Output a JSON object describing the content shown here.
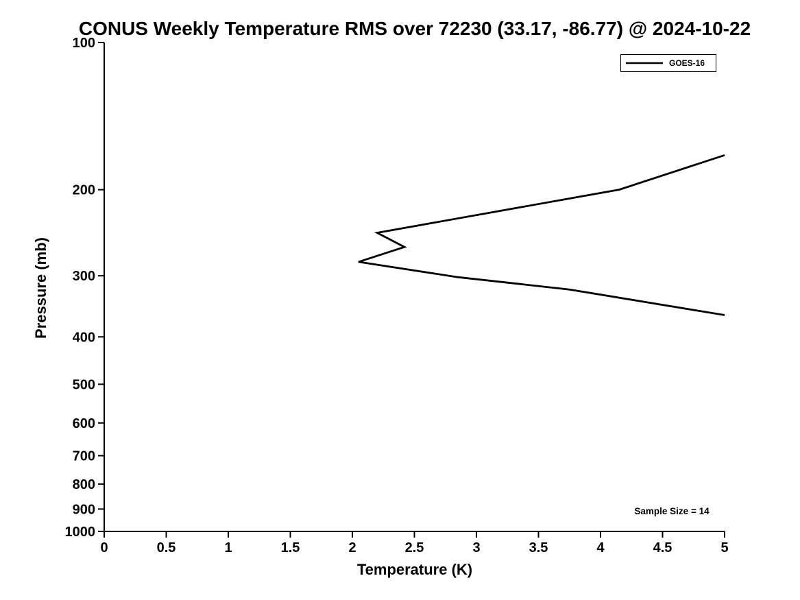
{
  "chart_data": {
    "type": "line",
    "title": "CONUS Weekly Temperature RMS over 72230 (33.17, -86.77) @ 2024-10-22",
    "xlabel": "Temperature (K)",
    "ylabel": "Pressure (mb)",
    "xlim": [
      0,
      5
    ],
    "ylim": [
      100,
      1000
    ],
    "y_scale": "log",
    "y_inverted": true,
    "grid": false,
    "x_ticks": [
      0,
      0.5,
      1,
      1.5,
      2,
      2.5,
      3,
      3.5,
      4,
      4.5,
      5
    ],
    "x_tick_labels": [
      "0",
      "0.5",
      "1",
      "1.5",
      "2",
      "2.5",
      "3",
      "3.5",
      "4",
      "4.5",
      "5"
    ],
    "y_ticks": [
      100,
      200,
      300,
      400,
      500,
      600,
      700,
      800,
      900,
      1000
    ],
    "legend": {
      "position": "top-right",
      "entries": [
        {
          "name": "GOES-16",
          "color": "#000000"
        }
      ]
    },
    "annotation": "Sample Size = 14",
    "sample_size": 14,
    "series": [
      {
        "name": "GOES-16",
        "color": "#000000",
        "points_temperature_pressure": [
          [
            5.0,
            170
          ],
          [
            4.15,
            200
          ],
          [
            2.2,
            245
          ],
          [
            2.42,
            262
          ],
          [
            2.05,
            281
          ],
          [
            2.85,
            302
          ],
          [
            3.75,
            320
          ],
          [
            5.0,
            361
          ]
        ]
      }
    ]
  }
}
